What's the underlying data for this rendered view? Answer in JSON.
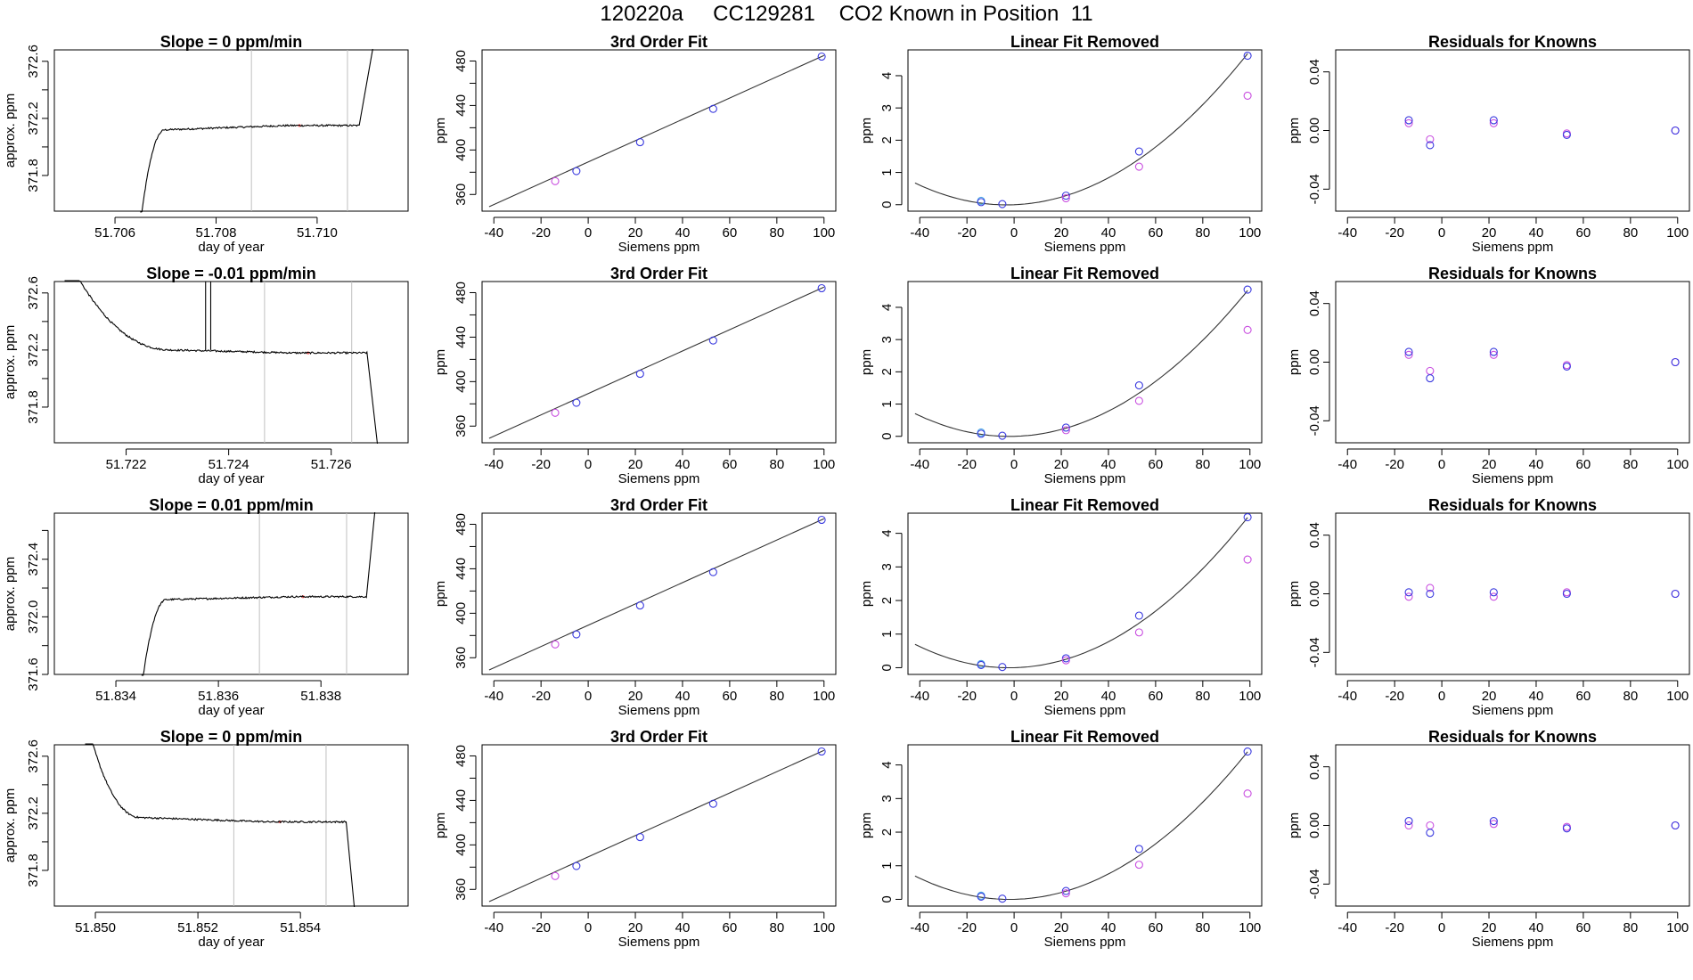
{
  "page_title": "120220a     CC129281    CO2 Known in Position  11",
  "colors": {
    "trace": "#000000",
    "fit": "#333333",
    "marker_blue": "#3a3adf",
    "marker_magenta": "#c94fe0",
    "marker_cyan": "#4aa9e6",
    "window_line": "#c0c0c0",
    "window_marker": "#ff6666"
  },
  "chart_data": [
    {
      "type": "line",
      "title": "Slope =  0  ppm/min",
      "xlabel": "day of year",
      "ylabel": "approx. ppm",
      "xlim": [
        51.7048,
        51.7118
      ],
      "ylim": [
        371.55,
        372.68
      ],
      "xticks": [
        51.706,
        51.708,
        51.71
      ],
      "xtick_labels": [
        "51.706",
        "51.708",
        "51.710"
      ],
      "yticks": [
        371.8,
        372.2,
        372.6
      ],
      "yticks_minor": [
        372.0,
        372.4
      ],
      "ytick_labels": [
        "371.8",
        "372.2",
        "372.6"
      ],
      "window": [
        51.7087,
        51.7106
      ],
      "trace": {
        "start": 51.7065,
        "rise_end": 51.707,
        "plateau": 372.12,
        "level": 372.15,
        "end": 51.71085,
        "spike_to": 372.7,
        "spike_at": 51.7111,
        "noise": 0.006,
        "spikes": []
      }
    },
    {
      "type": "line",
      "title": "3rd Order Fit",
      "xlabel": "Siemens ppm",
      "ylabel": "ppm",
      "xlim": [
        -45,
        105
      ],
      "ylim": [
        345,
        490
      ],
      "xticks": [
        -40,
        -20,
        0,
        20,
        40,
        60,
        80,
        100
      ],
      "yticks": [
        360,
        400,
        440,
        480
      ],
      "yticks_minor": [
        380,
        420,
        460
      ],
      "line": {
        "x": [
          -42,
          100
        ],
        "y": [
          349,
          485
        ]
      },
      "points": [
        {
          "x": -14,
          "y": 372,
          "c": "m"
        },
        {
          "x": -5,
          "y": 381,
          "c": "b"
        },
        {
          "x": 22,
          "y": 407,
          "c": "b"
        },
        {
          "x": 53,
          "y": 437,
          "c": "b"
        },
        {
          "x": 99,
          "y": 484,
          "c": "b"
        }
      ]
    },
    {
      "type": "scatter",
      "title": "Linear Fit Removed",
      "xlabel": "Siemens ppm",
      "ylabel": "ppm",
      "xlim": [
        -45,
        105
      ],
      "ylim": [
        -0.2,
        4.8
      ],
      "xticks": [
        -40,
        -20,
        0,
        20,
        40,
        60,
        80,
        100
      ],
      "yticks": [
        0,
        1,
        2,
        3,
        4
      ],
      "curve": {
        "a": 0.000449,
        "b": 0.00286,
        "c": 0.0
      },
      "points": [
        {
          "x": -14,
          "y": 0.12,
          "c": "c"
        },
        {
          "x": -14,
          "y": 0.08,
          "c": "b"
        },
        {
          "x": -5,
          "y": 0.02,
          "c": "b"
        },
        {
          "x": 22,
          "y": 0.28,
          "c": "b"
        },
        {
          "x": 22,
          "y": 0.2,
          "c": "m"
        },
        {
          "x": 53,
          "y": 1.65,
          "c": "b"
        },
        {
          "x": 53,
          "y": 1.18,
          "c": "m"
        },
        {
          "x": 99,
          "y": 4.62,
          "c": "b"
        },
        {
          "x": 99,
          "y": 3.38,
          "c": "m"
        }
      ]
    },
    {
      "type": "scatter",
      "title": "Residuals for Knowns",
      "xlabel": "Siemens ppm",
      "ylabel": "ppm",
      "xlim": [
        -45,
        105
      ],
      "ylim": [
        -0.055,
        0.055
      ],
      "xticks": [
        -40,
        -20,
        0,
        20,
        40,
        60,
        80,
        100
      ],
      "yticks": [
        -0.04,
        0.0,
        0.04
      ],
      "ytick_labels": [
        "-0.04",
        "0.00",
        "0.04"
      ],
      "points": [
        {
          "x": -14,
          "y": 0.005,
          "c": "m"
        },
        {
          "x": -14,
          "y": 0.007,
          "c": "b"
        },
        {
          "x": -5,
          "y": -0.006,
          "c": "m"
        },
        {
          "x": -5,
          "y": -0.01,
          "c": "b"
        },
        {
          "x": 22,
          "y": 0.005,
          "c": "m"
        },
        {
          "x": 22,
          "y": 0.007,
          "c": "b"
        },
        {
          "x": 53,
          "y": -0.002,
          "c": "m"
        },
        {
          "x": 53,
          "y": -0.003,
          "c": "b"
        },
        {
          "x": 99,
          "y": 0.0,
          "c": "m"
        },
        {
          "x": 99,
          "y": 0.0,
          "c": "b"
        }
      ]
    },
    {
      "type": "line",
      "title": "Slope =  -0.01  ppm/min",
      "xlabel": "day of year",
      "ylabel": "approx. ppm",
      "xlim": [
        51.7206,
        51.7275
      ],
      "ylim": [
        371.55,
        372.68
      ],
      "xticks": [
        51.722,
        51.724,
        51.726
      ],
      "xtick_labels": [
        "51.722",
        "51.724",
        "51.726"
      ],
      "yticks": [
        371.8,
        372.2,
        372.6
      ],
      "yticks_minor": [
        372.0,
        372.4
      ],
      "ytick_labels": [
        "371.8",
        "372.2",
        "372.6"
      ],
      "window": [
        51.7247,
        51.7264
      ],
      "trace": {
        "start": 51.7208,
        "rise_end": 51.7229,
        "plateau": 372.2,
        "level": 372.18,
        "end": 51.7267,
        "spike_to": 371.5,
        "spike_at": 51.7269,
        "noise": 0.006,
        "fall": true,
        "spikes": [
          51.72355,
          51.72365
        ]
      }
    },
    {
      "type": "line",
      "title": "3rd Order Fit",
      "xlabel": "Siemens ppm",
      "ylabel": "ppm",
      "xlim": [
        -45,
        105
      ],
      "ylim": [
        345,
        490
      ],
      "xticks": [
        -40,
        -20,
        0,
        20,
        40,
        60,
        80,
        100
      ],
      "yticks": [
        360,
        400,
        440,
        480
      ],
      "yticks_minor": [
        380,
        420,
        460
      ],
      "line": {
        "x": [
          -42,
          100
        ],
        "y": [
          349,
          485
        ]
      },
      "points": [
        {
          "x": -14,
          "y": 372,
          "c": "m"
        },
        {
          "x": -5,
          "y": 381,
          "c": "b"
        },
        {
          "x": 22,
          "y": 407,
          "c": "b"
        },
        {
          "x": 53,
          "y": 437,
          "c": "b"
        },
        {
          "x": 99,
          "y": 484,
          "c": "b"
        }
      ]
    },
    {
      "type": "scatter",
      "title": "Linear Fit Removed",
      "xlabel": "Siemens ppm",
      "ylabel": "ppm",
      "xlim": [
        -45,
        105
      ],
      "ylim": [
        -0.2,
        4.8
      ],
      "xticks": [
        -40,
        -20,
        0,
        20,
        40,
        60,
        80,
        100
      ],
      "yticks": [
        0,
        1,
        2,
        3,
        4
      ],
      "curve": {
        "a": 0.000443,
        "b": 0.0018,
        "c": 0.0
      },
      "points": [
        {
          "x": -14,
          "y": 0.12,
          "c": "c"
        },
        {
          "x": -14,
          "y": 0.08,
          "c": "b"
        },
        {
          "x": -5,
          "y": 0.02,
          "c": "b"
        },
        {
          "x": 22,
          "y": 0.27,
          "c": "b"
        },
        {
          "x": 22,
          "y": 0.19,
          "c": "m"
        },
        {
          "x": 53,
          "y": 1.58,
          "c": "b"
        },
        {
          "x": 53,
          "y": 1.1,
          "c": "m"
        },
        {
          "x": 99,
          "y": 4.55,
          "c": "b"
        },
        {
          "x": 99,
          "y": 3.3,
          "c": "m"
        }
      ]
    },
    {
      "type": "scatter",
      "title": "Residuals for Knowns",
      "xlabel": "Siemens ppm",
      "ylabel": "ppm",
      "xlim": [
        -45,
        105
      ],
      "ylim": [
        -0.055,
        0.055
      ],
      "xticks": [
        -40,
        -20,
        0,
        20,
        40,
        60,
        80,
        100
      ],
      "yticks": [
        -0.04,
        0.0,
        0.04
      ],
      "ytick_labels": [
        "-0.04",
        "0.00",
        "0.04"
      ],
      "points": [
        {
          "x": -14,
          "y": 0.005,
          "c": "m"
        },
        {
          "x": -14,
          "y": 0.007,
          "c": "b"
        },
        {
          "x": -5,
          "y": -0.006,
          "c": "m"
        },
        {
          "x": -5,
          "y": -0.011,
          "c": "b"
        },
        {
          "x": 22,
          "y": 0.005,
          "c": "m"
        },
        {
          "x": 22,
          "y": 0.007,
          "c": "b"
        },
        {
          "x": 53,
          "y": -0.002,
          "c": "m"
        },
        {
          "x": 53,
          "y": -0.003,
          "c": "b"
        },
        {
          "x": 99,
          "y": 0.0,
          "c": "m"
        },
        {
          "x": 99,
          "y": 0.0,
          "c": "b"
        }
      ]
    },
    {
      "type": "line",
      "title": "Slope =  0.01  ppm/min",
      "xlabel": "day of year",
      "ylabel": "approx. ppm",
      "xlim": [
        51.8328,
        51.8397
      ],
      "ylim": [
        371.6,
        372.72
      ],
      "xticks": [
        51.834,
        51.836,
        51.838
      ],
      "xtick_labels": [
        "51.834",
        "51.836",
        "51.838"
      ],
      "yticks": [
        371.6,
        372.0,
        372.4
      ],
      "yticks_minor": [
        371.8,
        372.2,
        372.6
      ],
      "ytick_labels": [
        "371.6",
        "372.0",
        "372.4"
      ],
      "window": [
        51.8368,
        51.8385
      ],
      "trace": {
        "start": 51.8345,
        "rise_end": 51.835,
        "plateau": 372.12,
        "level": 372.14,
        "end": 51.8389,
        "spike_to": 372.75,
        "spike_at": 51.83905,
        "noise": 0.006,
        "spikes": []
      }
    },
    {
      "type": "line",
      "title": "3rd Order Fit",
      "xlabel": "Siemens ppm",
      "ylabel": "ppm",
      "xlim": [
        -45,
        105
      ],
      "ylim": [
        345,
        490
      ],
      "xticks": [
        -40,
        -20,
        0,
        20,
        40,
        60,
        80,
        100
      ],
      "yticks": [
        360,
        400,
        440,
        480
      ],
      "yticks_minor": [
        380,
        420,
        460
      ],
      "line": {
        "x": [
          -42,
          100
        ],
        "y": [
          349,
          485
        ]
      },
      "points": [
        {
          "x": -14,
          "y": 372,
          "c": "m"
        },
        {
          "x": -5,
          "y": 381,
          "c": "b"
        },
        {
          "x": 22,
          "y": 407,
          "c": "b"
        },
        {
          "x": 53,
          "y": 437,
          "c": "b"
        },
        {
          "x": 99,
          "y": 484,
          "c": "b"
        }
      ]
    },
    {
      "type": "scatter",
      "title": "Linear Fit Removed",
      "xlabel": "Siemens ppm",
      "ylabel": "ppm",
      "xlim": [
        -45,
        105
      ],
      "ylim": [
        -0.2,
        4.6
      ],
      "xticks": [
        -40,
        -20,
        0,
        20,
        40,
        60,
        80,
        100
      ],
      "yticks": [
        0,
        1,
        2,
        3,
        4
      ],
      "curve": {
        "a": 0.000438,
        "b": 0.0018,
        "c": 0.0
      },
      "points": [
        {
          "x": -14,
          "y": 0.11,
          "c": "c"
        },
        {
          "x": -14,
          "y": 0.08,
          "c": "b"
        },
        {
          "x": -5,
          "y": 0.02,
          "c": "b"
        },
        {
          "x": 22,
          "y": 0.28,
          "c": "b"
        },
        {
          "x": 22,
          "y": 0.22,
          "c": "m"
        },
        {
          "x": 53,
          "y": 1.55,
          "c": "b"
        },
        {
          "x": 53,
          "y": 1.05,
          "c": "m"
        },
        {
          "x": 99,
          "y": 4.48,
          "c": "b"
        },
        {
          "x": 99,
          "y": 3.22,
          "c": "m"
        }
      ]
    },
    {
      "type": "scatter",
      "title": "Residuals for Knowns",
      "xlabel": "Siemens ppm",
      "ylabel": "ppm",
      "xlim": [
        -45,
        105
      ],
      "ylim": [
        -0.055,
        0.055
      ],
      "xticks": [
        -40,
        -20,
        0,
        20,
        40,
        60,
        80,
        100
      ],
      "yticks": [
        -0.04,
        0.0,
        0.04
      ],
      "ytick_labels": [
        "-0.04",
        "0.00",
        "0.04"
      ],
      "points": [
        {
          "x": -14,
          "y": -0.002,
          "c": "m"
        },
        {
          "x": -14,
          "y": 0.001,
          "c": "b"
        },
        {
          "x": -5,
          "y": 0.004,
          "c": "m"
        },
        {
          "x": -5,
          "y": 0.0,
          "c": "b"
        },
        {
          "x": 22,
          "y": -0.002,
          "c": "m"
        },
        {
          "x": 22,
          "y": 0.001,
          "c": "b"
        },
        {
          "x": 53,
          "y": 0.001,
          "c": "m"
        },
        {
          "x": 53,
          "y": 0.0,
          "c": "b"
        },
        {
          "x": 99,
          "y": 0.0,
          "c": "m"
        },
        {
          "x": 99,
          "y": 0.0,
          "c": "b"
        }
      ]
    },
    {
      "type": "line",
      "title": "Slope =  0  ppm/min",
      "xlabel": "day of year",
      "ylabel": "approx. ppm",
      "xlim": [
        51.8492,
        51.8561
      ],
      "ylim": [
        371.55,
        372.68
      ],
      "xticks": [
        51.85,
        51.852,
        51.854
      ],
      "xtick_labels": [
        "51.850",
        "51.852",
        "51.854"
      ],
      "yticks": [
        371.8,
        372.2,
        372.6
      ],
      "yticks_minor": [
        372.0,
        372.4
      ],
      "ytick_labels": [
        "371.8",
        "372.2",
        "372.6"
      ],
      "window": [
        51.8527,
        51.8545
      ],
      "trace": {
        "start": 51.8498,
        "rise_end": 51.8509,
        "plateau": 372.17,
        "level": 372.14,
        "end": 51.8549,
        "spike_to": 371.5,
        "spike_at": 51.85505,
        "noise": 0.006,
        "fall": true,
        "spikes": []
      }
    },
    {
      "type": "line",
      "title": "3rd Order Fit",
      "xlabel": "Siemens ppm",
      "ylabel": "ppm",
      "xlim": [
        -45,
        105
      ],
      "ylim": [
        345,
        490
      ],
      "xticks": [
        -40,
        -20,
        0,
        20,
        40,
        60,
        80,
        100
      ],
      "yticks": [
        360,
        400,
        440,
        480
      ],
      "yticks_minor": [
        380,
        420,
        460
      ],
      "line": {
        "x": [
          -42,
          100
        ],
        "y": [
          349,
          485
        ]
      },
      "points": [
        {
          "x": -14,
          "y": 372,
          "c": "m"
        },
        {
          "x": -5,
          "y": 381,
          "c": "b"
        },
        {
          "x": 22,
          "y": 407,
          "c": "b"
        },
        {
          "x": 53,
          "y": 437,
          "c": "b"
        },
        {
          "x": 99,
          "y": 484,
          "c": "b"
        }
      ]
    },
    {
      "type": "scatter",
      "title": "Linear Fit Removed",
      "xlabel": "Siemens ppm",
      "ylabel": "ppm",
      "xlim": [
        -45,
        105
      ],
      "ylim": [
        -0.2,
        4.6
      ],
      "xticks": [
        -40,
        -20,
        0,
        20,
        40,
        60,
        80,
        100
      ],
      "yticks": [
        0,
        1,
        2,
        3,
        4
      ],
      "curve": {
        "a": 0.000432,
        "b": 0.0016,
        "c": 0.0
      },
      "points": [
        {
          "x": -14,
          "y": 0.11,
          "c": "c"
        },
        {
          "x": -14,
          "y": 0.08,
          "c": "b"
        },
        {
          "x": -5,
          "y": 0.02,
          "c": "b"
        },
        {
          "x": 22,
          "y": 0.25,
          "c": "b"
        },
        {
          "x": 22,
          "y": 0.18,
          "c": "m"
        },
        {
          "x": 53,
          "y": 1.5,
          "c": "b"
        },
        {
          "x": 53,
          "y": 1.03,
          "c": "m"
        },
        {
          "x": 99,
          "y": 4.4,
          "c": "b"
        },
        {
          "x": 99,
          "y": 3.15,
          "c": "m"
        }
      ]
    },
    {
      "type": "scatter",
      "title": "Residuals for Knowns",
      "xlabel": "Siemens ppm",
      "ylabel": "ppm",
      "xlim": [
        -45,
        105
      ],
      "ylim": [
        -0.055,
        0.055
      ],
      "xticks": [
        -40,
        -20,
        0,
        20,
        40,
        60,
        80,
        100
      ],
      "yticks": [
        -0.04,
        0.0,
        0.04
      ],
      "ytick_labels": [
        "-0.04",
        "0.00",
        "0.04"
      ],
      "points": [
        {
          "x": -14,
          "y": 0.0,
          "c": "m"
        },
        {
          "x": -14,
          "y": 0.003,
          "c": "b"
        },
        {
          "x": -5,
          "y": 0.0,
          "c": "m"
        },
        {
          "x": -5,
          "y": -0.005,
          "c": "b"
        },
        {
          "x": 22,
          "y": 0.001,
          "c": "m"
        },
        {
          "x": 22,
          "y": 0.003,
          "c": "b"
        },
        {
          "x": 53,
          "y": -0.001,
          "c": "m"
        },
        {
          "x": 53,
          "y": -0.002,
          "c": "b"
        },
        {
          "x": 99,
          "y": 0.0,
          "c": "m"
        },
        {
          "x": 99,
          "y": 0.0,
          "c": "b"
        }
      ]
    }
  ]
}
